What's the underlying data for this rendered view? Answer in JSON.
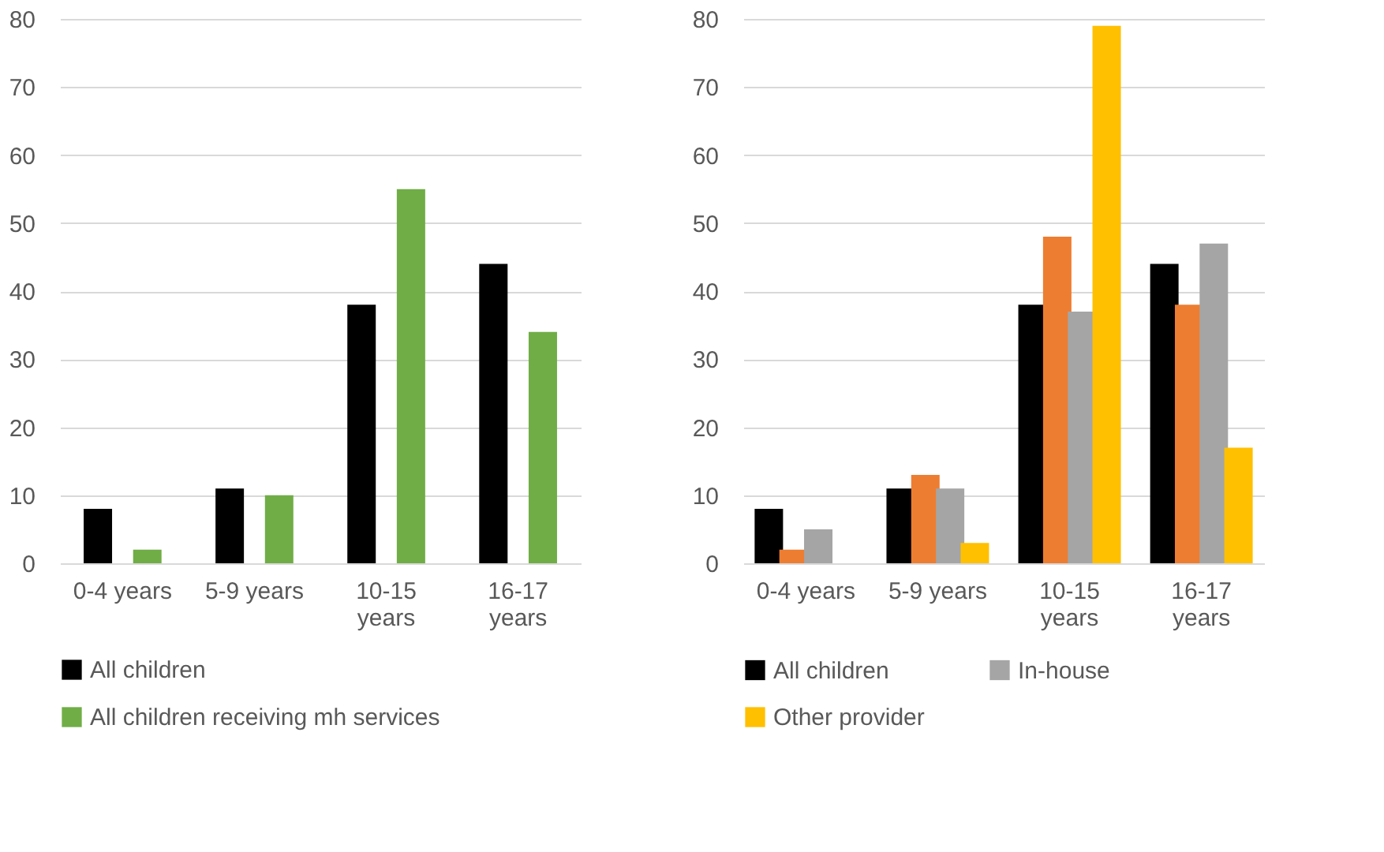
{
  "chart_data": [
    {
      "type": "bar",
      "categories": [
        "0-4 years",
        "5-9 years",
        "10-15 years",
        "16-17 years"
      ],
      "ylim": [
        0,
        80
      ],
      "yticks": [
        0,
        10,
        20,
        30,
        40,
        50,
        60,
        70,
        80
      ],
      "grid": "y",
      "legend": "bottom",
      "series": [
        {
          "name": "All children",
          "color": "#000000",
          "values": [
            8,
            11,
            38,
            44
          ]
        },
        {
          "name": "All children receiving mh services",
          "color": "#70ad47",
          "values": [
            2,
            10,
            55,
            34
          ]
        }
      ]
    },
    {
      "type": "bar",
      "categories": [
        "0-4 years",
        "5-9 years",
        "10-15 years",
        "16-17 years"
      ],
      "ylim": [
        0,
        80
      ],
      "yticks": [
        0,
        10,
        20,
        30,
        40,
        50,
        60,
        70,
        80
      ],
      "grid": "y",
      "legend": "bottom",
      "series": [
        {
          "name": "All children",
          "color": "#000000",
          "values": [
            8,
            11,
            38,
            44
          ]
        },
        {
          "color": "#ed7d31",
          "values": [
            2,
            13,
            48,
            38
          ]
        },
        {
          "name": "In-house",
          "color": "#a5a5a5",
          "values": [
            5,
            11,
            37,
            47
          ]
        },
        {
          "name": "Other provider",
          "color": "#ffc000",
          "values": [
            0,
            3,
            79,
            17
          ]
        }
      ]
    }
  ]
}
